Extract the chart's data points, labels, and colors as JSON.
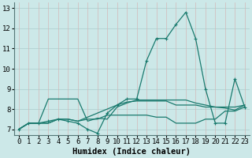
{
  "x": [
    0,
    1,
    2,
    3,
    4,
    5,
    6,
    7,
    8,
    9,
    10,
    11,
    12,
    13,
    14,
    15,
    16,
    17,
    18,
    19,
    20,
    21,
    22,
    23
  ],
  "line_main": [
    7.0,
    7.3,
    7.3,
    7.4,
    7.5,
    7.4,
    7.3,
    7.0,
    6.8,
    7.8,
    8.2,
    8.5,
    8.5,
    10.4,
    11.5,
    11.5,
    12.2,
    12.8,
    11.5,
    9.0,
    7.3,
    7.3,
    9.5,
    8.1
  ],
  "line_upper": [
    7.0,
    7.3,
    7.3,
    8.5,
    8.5,
    8.5,
    8.5,
    7.4,
    7.55,
    7.5,
    8.1,
    8.3,
    8.45,
    8.45,
    8.45,
    8.45,
    8.45,
    8.45,
    8.3,
    8.2,
    8.1,
    8.05,
    7.95,
    8.2
  ],
  "line_mid": [
    7.0,
    7.3,
    7.3,
    7.3,
    7.5,
    7.5,
    7.4,
    7.6,
    7.8,
    8.0,
    8.2,
    8.35,
    8.4,
    8.4,
    8.4,
    8.4,
    8.2,
    8.2,
    8.2,
    8.1,
    8.1,
    8.1,
    8.1,
    8.2
  ],
  "line_lower": [
    7.0,
    7.3,
    7.3,
    7.3,
    7.5,
    7.5,
    7.4,
    7.5,
    7.5,
    7.7,
    7.7,
    7.7,
    7.7,
    7.7,
    7.6,
    7.6,
    7.3,
    7.3,
    7.3,
    7.5,
    7.5,
    7.9,
    7.9,
    8.1
  ],
  "line_color": "#1a7a6e",
  "bg_color": "#cce8e8",
  "grid_color_h": "#aacccc",
  "grid_color_v": "#d4b8b8",
  "xlabel": "Humidex (Indice chaleur)",
  "ylim": [
    6.7,
    13.3
  ],
  "xlim": [
    -0.5,
    23.5
  ],
  "yticks": [
    7,
    8,
    9,
    10,
    11,
    12,
    13
  ],
  "xticks": [
    0,
    1,
    2,
    3,
    4,
    5,
    6,
    7,
    8,
    9,
    10,
    11,
    12,
    13,
    14,
    15,
    16,
    17,
    18,
    19,
    20,
    21,
    22,
    23
  ],
  "tick_fontsize": 6.5,
  "xlabel_fontsize": 7.5
}
